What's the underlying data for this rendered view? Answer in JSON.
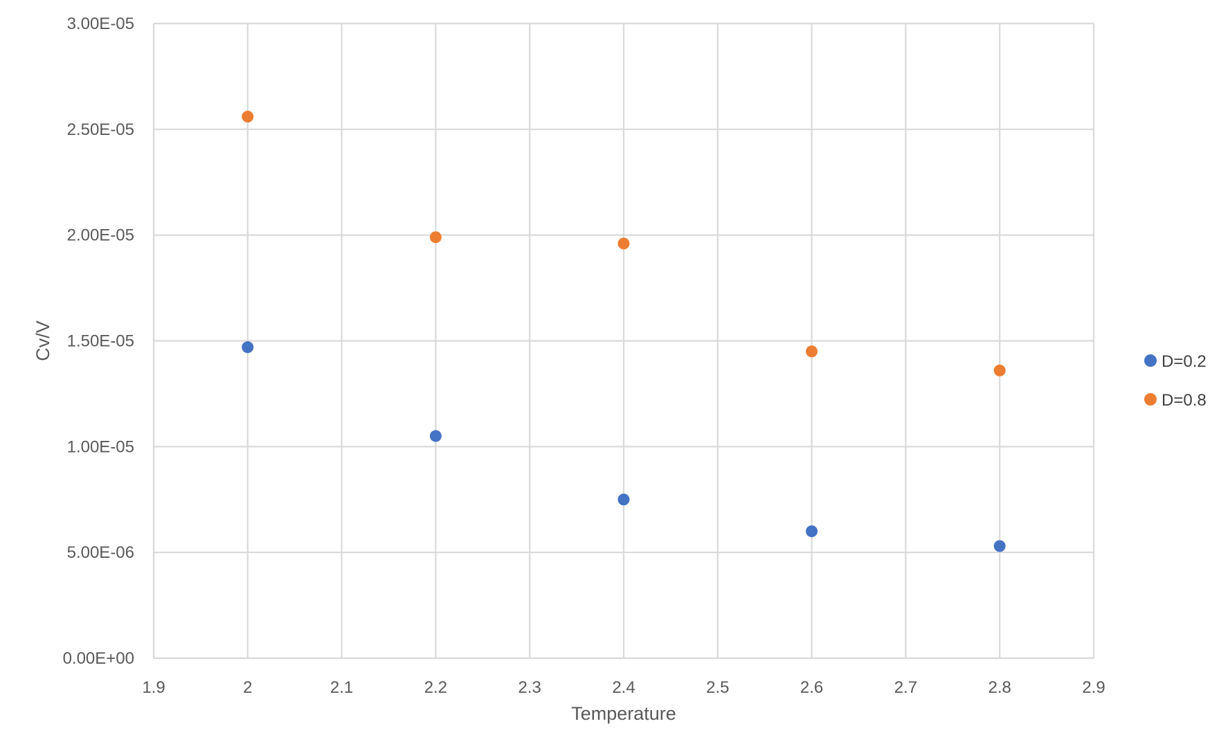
{
  "chart_data": {
    "type": "scatter",
    "title": "",
    "xlabel": "Temperature",
    "ylabel": "Cv/V",
    "xlim": [
      1.9,
      2.9
    ],
    "ylim": [
      0,
      3e-05
    ],
    "x_ticks": [
      "1.9",
      "2",
      "2.1",
      "2.2",
      "2.3",
      "2.4",
      "2.5",
      "2.6",
      "2.7",
      "2.8",
      "2.9"
    ],
    "y_ticks": [
      "0.00E+00",
      "5.00E-06",
      "1.00E-05",
      "1.50E-05",
      "2.00E-05",
      "2.50E-05",
      "3.00E-05"
    ],
    "grid": true,
    "legend_position": "right",
    "series": [
      {
        "name": "D=0.2",
        "color": "#4472C4",
        "x": [
          2.0,
          2.2,
          2.4,
          2.6,
          2.8
        ],
        "y": [
          1.47e-05,
          1.05e-05,
          7.5e-06,
          6e-06,
          5.3e-06
        ]
      },
      {
        "name": "D=0.8",
        "color": "#ED7D31",
        "x": [
          2.0,
          2.2,
          2.4,
          2.6,
          2.8
        ],
        "y": [
          2.56e-05,
          1.99e-05,
          1.96e-05,
          1.45e-05,
          1.36e-05
        ]
      }
    ]
  },
  "colors": {
    "grid": "#d9d9d9",
    "axis_text": "#595959"
  }
}
